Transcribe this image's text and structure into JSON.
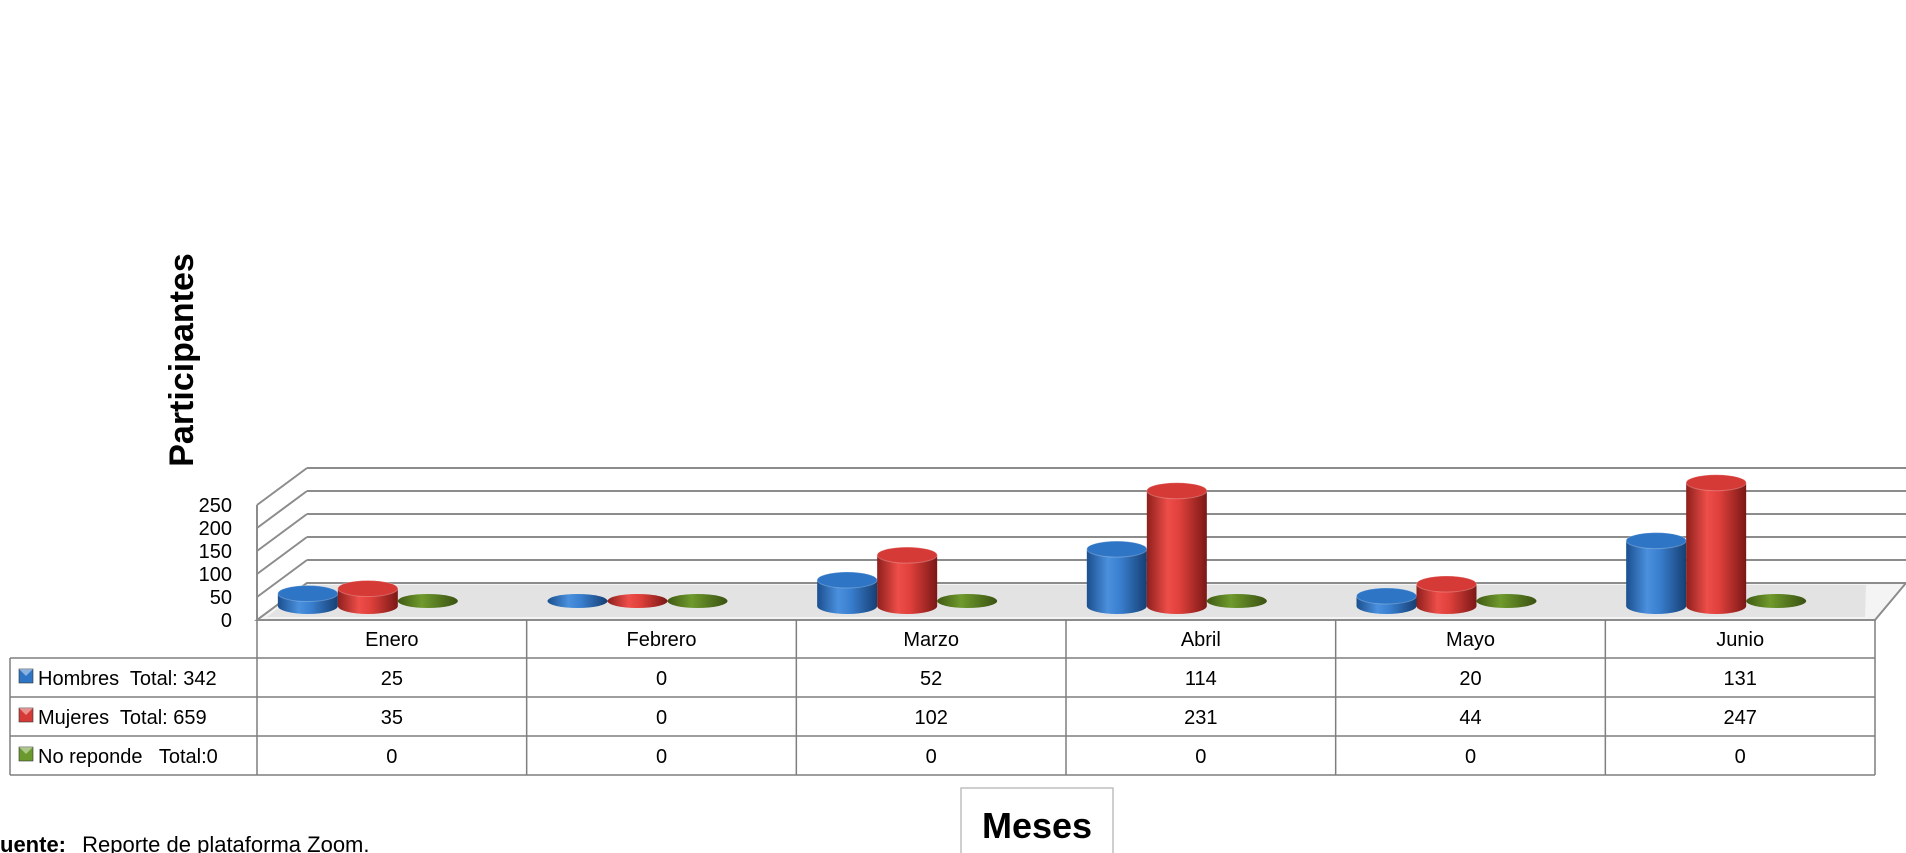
{
  "chart_data": {
    "type": "bar",
    "style": "3d-cylinder-with-data-table",
    "categories": [
      "Enero",
      "Febrero",
      "Marzo",
      "Abril",
      "Mayo",
      "Junio"
    ],
    "series": [
      {
        "name": "Hombres  Total: 342",
        "values": [
          25,
          0,
          52,
          114,
          20,
          131
        ],
        "color": "#2e75c6"
      },
      {
        "name": "Mujeres  Total: 659",
        "values": [
          35,
          0,
          102,
          231,
          44,
          247
        ],
        "color": "#d63a36"
      },
      {
        "name": "No reponde   Total:0",
        "values": [
          0,
          0,
          0,
          0,
          0,
          0
        ],
        "color": "#6a9a2e"
      }
    ],
    "ylabel": "Participantes",
    "xlabel": "Meses",
    "ylim": [
      0,
      250
    ],
    "yticks": [
      0,
      50,
      100,
      150,
      200,
      250
    ],
    "grid": true,
    "legend": "data-table"
  },
  "source": {
    "label": "uente:",
    "text": "Reporte de  plataforma Zoom."
  }
}
